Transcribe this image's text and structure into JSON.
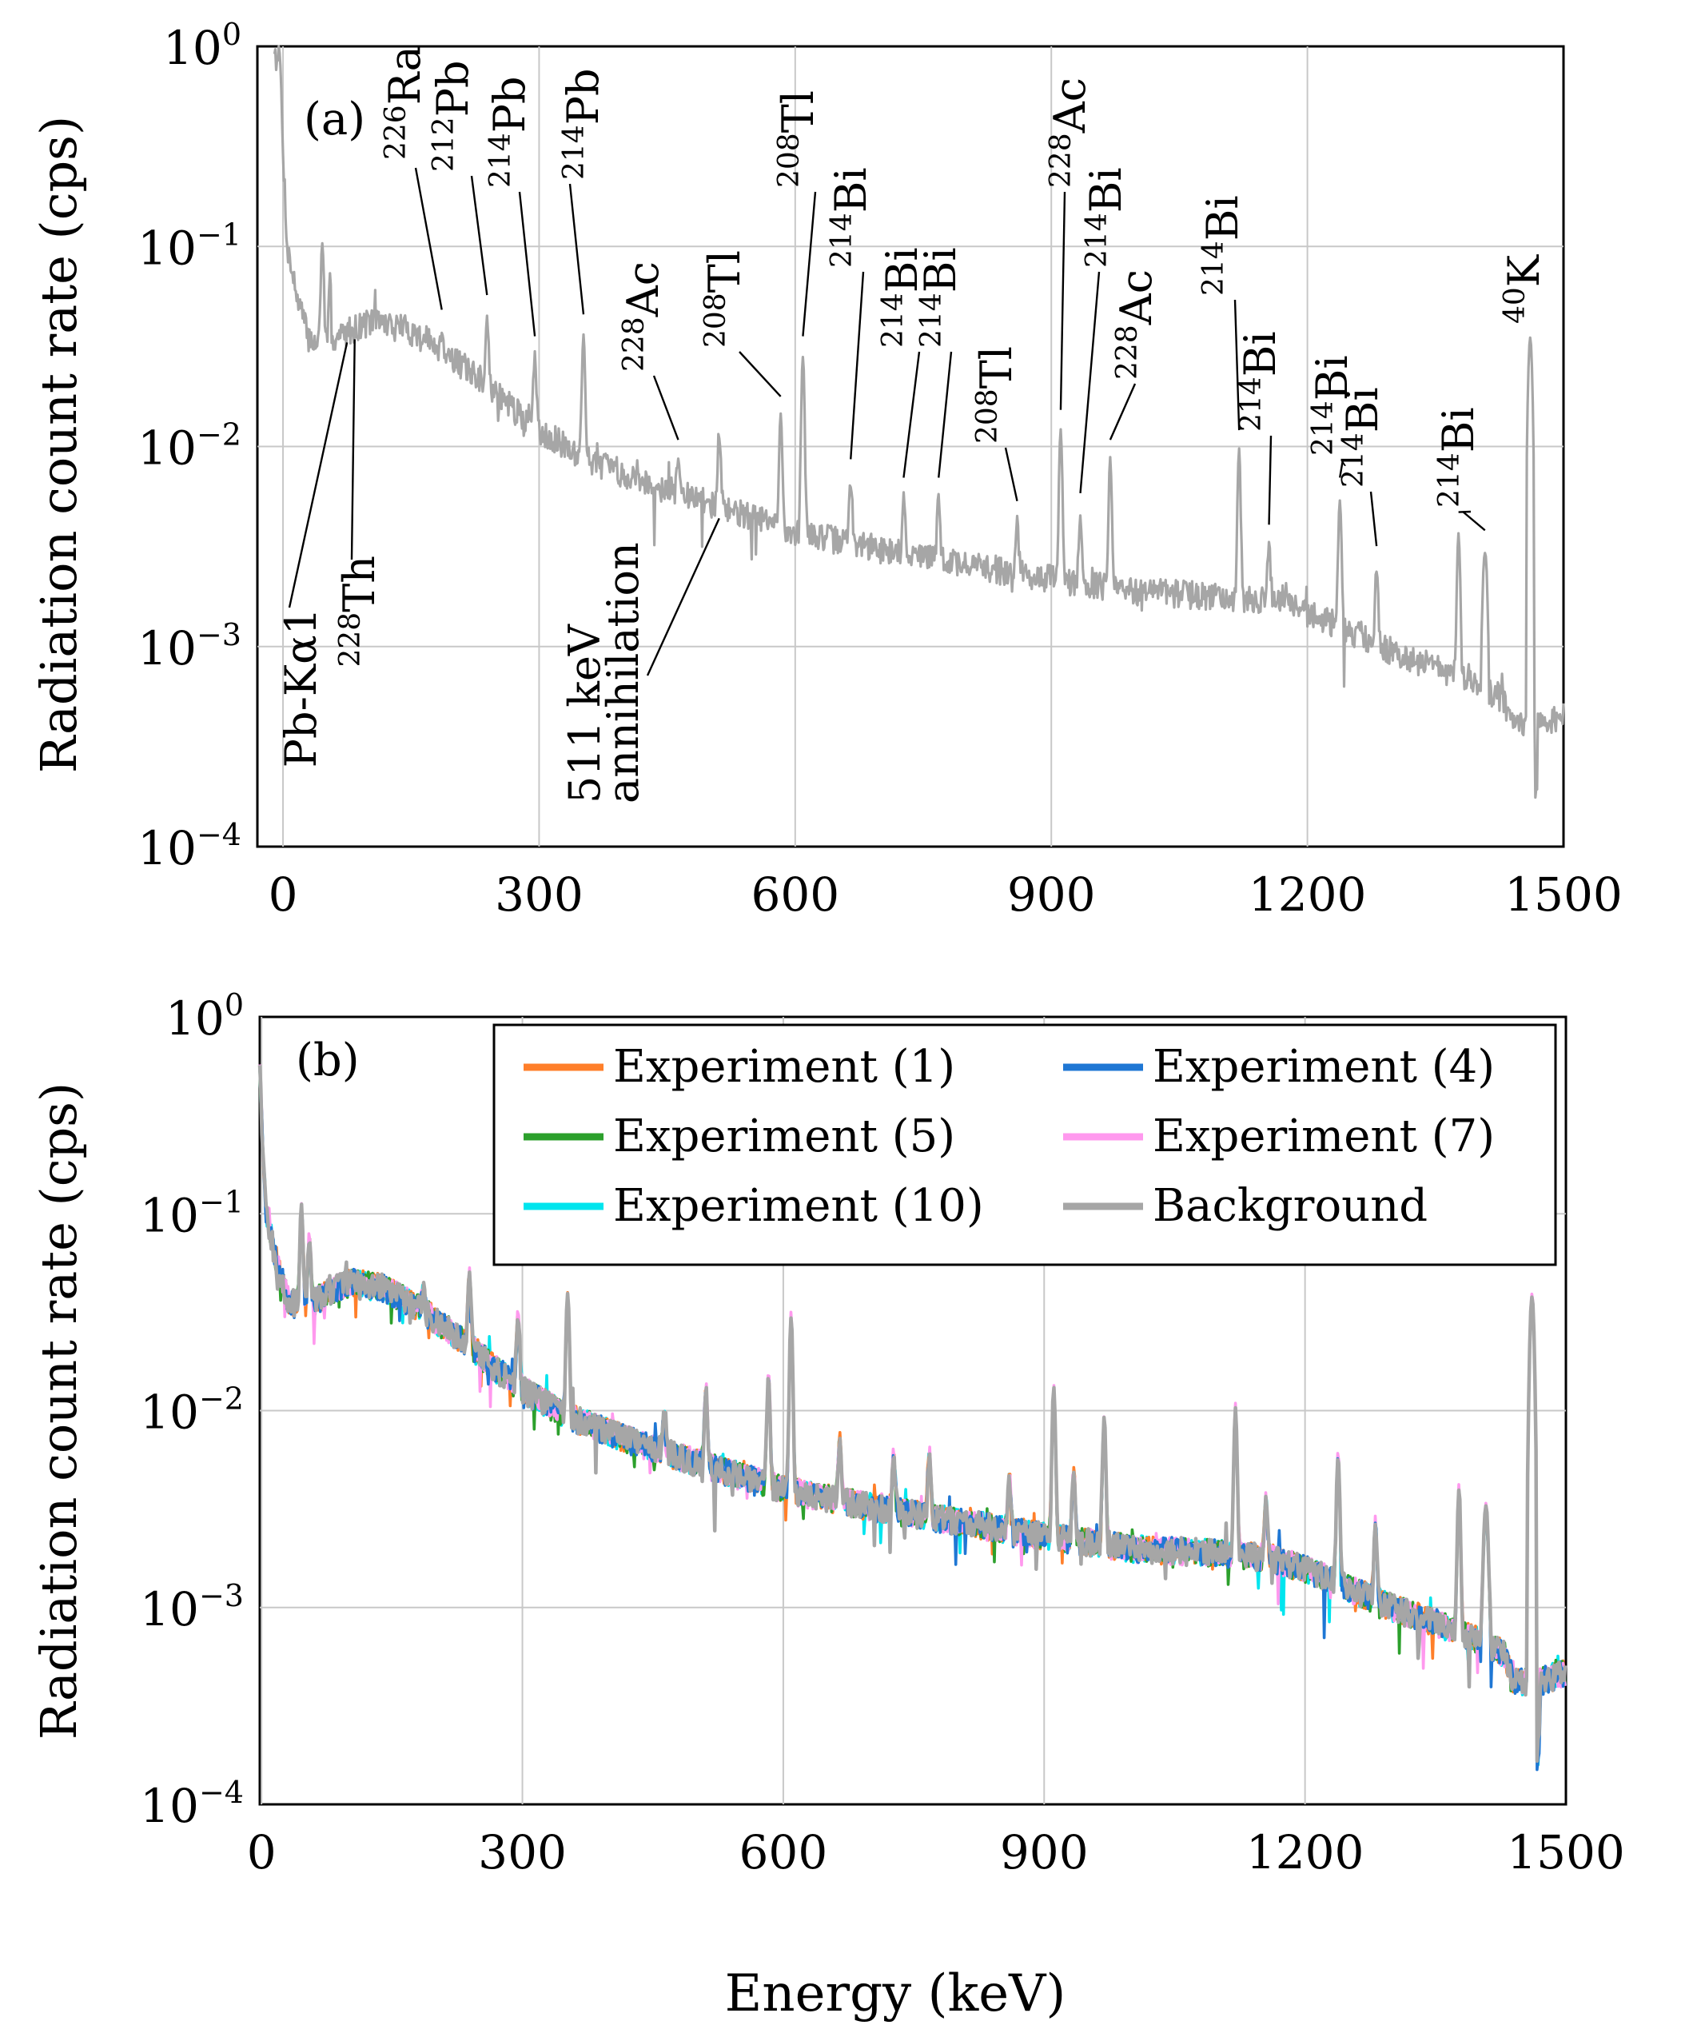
{
  "figure": {
    "xlabel": "Energy (keV)"
  },
  "chart_data": [
    {
      "type": "line",
      "panel_label": "(a)",
      "xlabel": "",
      "ylabel": "Radiation count rate (cps)",
      "yscale": "log",
      "xlim": [
        -30,
        1500
      ],
      "ylim": [
        0.0001,
        1
      ],
      "xticks": [
        0,
        300,
        600,
        900,
        1200,
        1500
      ],
      "ytick_exponents": [
        "0",
        "−1",
        "−2",
        "−3",
        "−4"
      ],
      "ytick_base": "10",
      "grid": true,
      "series": [
        {
          "name": "Background",
          "color": "#a6a6a6",
          "continuum": [
            [
              -10,
              1.0
            ],
            [
              -3,
              0.6
            ],
            [
              5,
              0.1
            ],
            [
              15,
              0.06
            ],
            [
              30,
              0.035
            ],
            [
              50,
              0.031
            ],
            [
              75,
              0.038
            ],
            [
              105,
              0.043
            ],
            [
              140,
              0.04
            ],
            [
              180,
              0.032
            ],
            [
              230,
              0.022
            ],
            [
              290,
              0.013
            ],
            [
              350,
              0.009
            ],
            [
              420,
              0.0068
            ],
            [
              500,
              0.0052
            ],
            [
              600,
              0.0038
            ],
            [
              700,
              0.0031
            ],
            [
              800,
              0.0026
            ],
            [
              900,
              0.0022
            ],
            [
              1000,
              0.0019
            ],
            [
              1100,
              0.0018
            ],
            [
              1160,
              0.0017
            ],
            [
              1200,
              0.0015
            ],
            [
              1250,
              0.0012
            ],
            [
              1300,
              0.00095
            ],
            [
              1350,
              0.0008
            ],
            [
              1400,
              0.00065
            ],
            [
              1430,
              0.00055
            ],
            [
              1440,
              0.0004
            ],
            [
              1470,
              0.0004
            ],
            [
              1500,
              0.00045
            ]
          ],
          "peaks": [
            [
              -5,
              1.0
            ],
            [
              46,
              0.1
            ],
            [
              55,
              0.07
            ],
            [
              186,
              0.038
            ],
            [
              239,
              0.045
            ],
            [
              295,
              0.028
            ],
            [
              352,
              0.036
            ],
            [
              463,
              0.0085
            ],
            [
              511,
              0.012
            ],
            [
              583,
              0.014
            ],
            [
              609,
              0.028
            ],
            [
              665,
              0.0068
            ],
            [
              727,
              0.0055
            ],
            [
              768,
              0.0055
            ],
            [
              860,
              0.0042
            ],
            [
              911,
              0.012
            ],
            [
              934,
              0.0046
            ],
            [
              969,
              0.0085
            ],
            [
              1120,
              0.0095
            ],
            [
              1155,
              0.0032
            ],
            [
              1238,
              0.0055
            ],
            [
              1281,
              0.0025
            ],
            [
              1377,
              0.0037
            ],
            [
              1408,
              0.003
            ],
            [
              1461,
              0.035
            ]
          ]
        }
      ],
      "annotations": [
        {
          "mass": "",
          "symbol": "Pb-Kα1",
          "energy": 75
        },
        {
          "mass": "228",
          "symbol": "Th",
          "energy": 84
        },
        {
          "mass": "226",
          "symbol": "Ra",
          "energy": 186
        },
        {
          "mass": "212",
          "symbol": "Pb",
          "energy": 239
        },
        {
          "mass": "214",
          "symbol": "Pb",
          "energy": 295
        },
        {
          "mass": "214",
          "symbol": "Pb",
          "energy": 352
        },
        {
          "mass": "228",
          "symbol": "Ac",
          "energy": 463
        },
        {
          "mass": "",
          "symbol": "511 keV",
          "line2": "annihilation",
          "energy": 511
        },
        {
          "mass": "208",
          "symbol": "Tl",
          "energy": 583
        },
        {
          "mass": "208",
          "symbol": "Tl",
          "energy": 609
        },
        {
          "mass": "214",
          "symbol": "Bi",
          "energy": 665
        },
        {
          "mass": "214",
          "symbol": "Bi",
          "energy": 727
        },
        {
          "mass": "214",
          "symbol": "Bi",
          "energy": 768
        },
        {
          "mass": "208",
          "symbol": "Tl",
          "energy": 860
        },
        {
          "mass": "228",
          "symbol": "Ac",
          "energy": 911
        },
        {
          "mass": "214",
          "symbol": "Bi",
          "energy": 934
        },
        {
          "mass": "228",
          "symbol": "Ac",
          "energy": 969
        },
        {
          "mass": "214",
          "symbol": "Bi",
          "energy": 1120
        },
        {
          "mass": "214",
          "symbol": "Bi",
          "energy": 1155
        },
        {
          "mass": "214",
          "symbol": "Bi",
          "energy": 1238
        },
        {
          "mass": "214",
          "symbol": "Bi",
          "energy": 1281
        },
        {
          "mass": "214",
          "symbol": "Bi",
          "energy": 1377
        },
        {
          "mass": "214",
          "symbol": "Bi",
          "energy": 1408
        },
        {
          "mass": "40",
          "symbol": "K",
          "energy": 1461
        }
      ]
    },
    {
      "type": "line",
      "panel_label": "(b)",
      "xlabel": "Energy (keV)",
      "ylabel": "Radiation count rate (cps)",
      "yscale": "log",
      "xlim": [
        -2,
        1500
      ],
      "ylim": [
        0.0001,
        1
      ],
      "xticks": [
        0,
        300,
        600,
        900,
        1200,
        1500
      ],
      "ytick_exponents": [
        "0",
        "−1",
        "−2",
        "−3",
        "−4"
      ],
      "ytick_base": "10",
      "grid": true,
      "legend_position": "top-right",
      "series": [
        {
          "name": "Experiment (1)",
          "color": "#ff7f2a"
        },
        {
          "name": "Experiment (4)",
          "color": "#1f77d4"
        },
        {
          "name": "Experiment (5)",
          "color": "#2ca02c"
        },
        {
          "name": "Experiment (7)",
          "color": "#ff99ee"
        },
        {
          "name": "Experiment (10)",
          "color": "#00e5ee"
        },
        {
          "name": "Background",
          "color": "#a6a6a6"
        }
      ]
    }
  ]
}
